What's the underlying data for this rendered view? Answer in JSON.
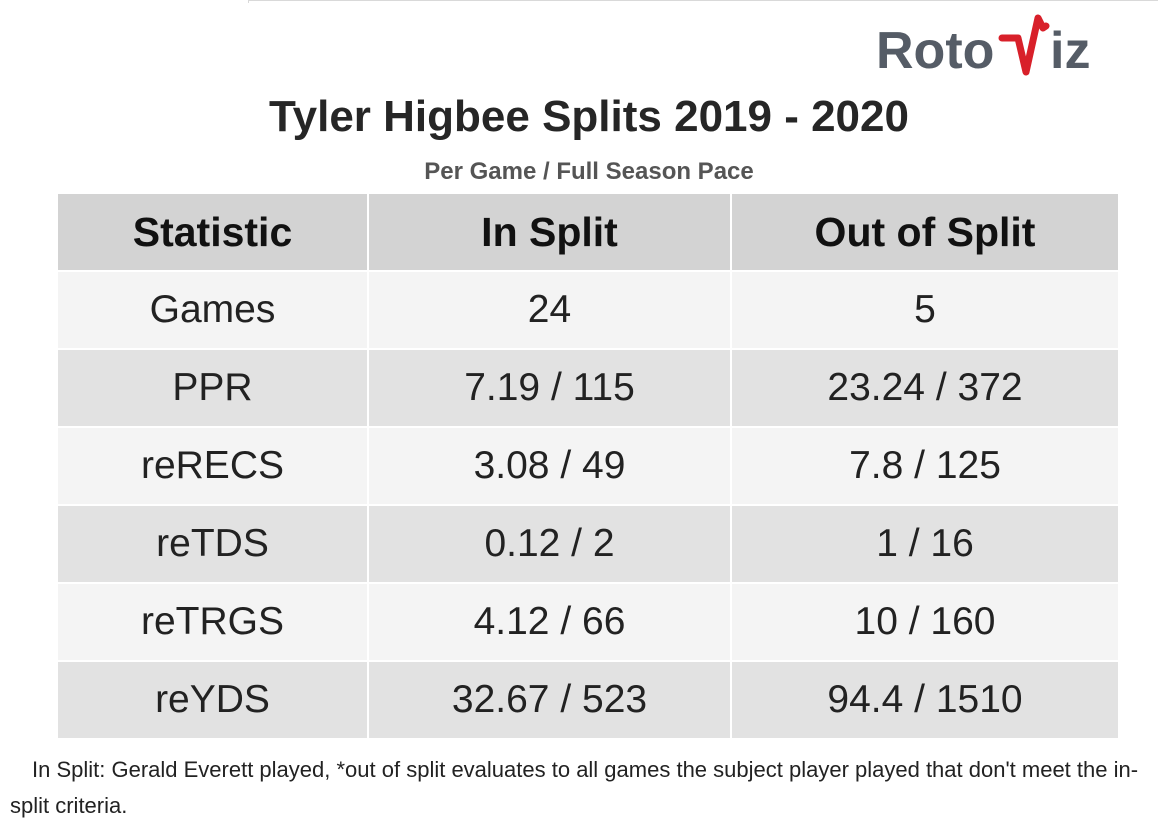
{
  "logo": {
    "text_left": "Roto",
    "text_right": "iz",
    "primary_color": "#555c66",
    "accent_color": "#d8202a"
  },
  "title": "Tyler Higbee Splits 2019 - 2020",
  "subtitle": "Per Game / Full Season Pace",
  "footnote": "In Split: Gerald Everett played,  *out of split evaluates to all games the subject player played that don't meet the in-split criteria.",
  "chart_data": {
    "type": "table",
    "title": "Tyler Higbee Splits 2019 - 2020",
    "subtitle": "Per Game / Full Season Pace",
    "columns": [
      "Statistic",
      "In Split",
      "Out of Split"
    ],
    "rows": [
      [
        "Games",
        "24",
        "5"
      ],
      [
        "PPR",
        "7.19 / 115",
        "23.24 / 372"
      ],
      [
        "reRECS",
        "3.08 / 49",
        "7.8 / 125"
      ],
      [
        "reTDS",
        "0.12 / 2",
        "1 / 16"
      ],
      [
        "reTRGS",
        "4.12 / 66",
        "10 / 160"
      ],
      [
        "reYDS",
        "32.67 / 523",
        "94.4 / 1510"
      ]
    ],
    "header_color": "#d3d3d3",
    "row_colors": [
      "#f4f4f4",
      "#e2e2e2"
    ]
  }
}
